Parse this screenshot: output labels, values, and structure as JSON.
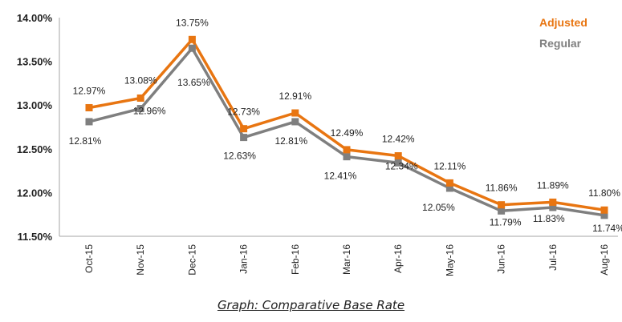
{
  "caption": "Graph: Comparative Base Rate",
  "chart_data": {
    "type": "line",
    "categories": [
      "Oct-15",
      "Nov-15",
      "Dec-15",
      "Jan-16",
      "Feb-16",
      "Mar-16",
      "Apr-16",
      "May-16",
      "Jun-16",
      "Jul-16",
      "Aug-16"
    ],
    "series": [
      {
        "name": "Adjusted",
        "color": "#E87511",
        "values": [
          12.97,
          13.08,
          13.75,
          12.73,
          12.91,
          12.49,
          12.42,
          12.11,
          11.86,
          11.89,
          11.8
        ],
        "labels": [
          "12.97%",
          "13.08%",
          "13.75%",
          "12.73%",
          "12.91%",
          "12.49%",
          "12.42%",
          "12.11%",
          "11.86%",
          "11.89%",
          "11.80%"
        ]
      },
      {
        "name": "Regular",
        "color": "#7F7F7F",
        "values": [
          12.81,
          12.96,
          13.65,
          12.63,
          12.81,
          12.41,
          12.34,
          12.05,
          11.79,
          11.83,
          11.74
        ],
        "labels": [
          "12.81%",
          "12.96%",
          "13.65%",
          "12.63%",
          "12.81%",
          "12.41%",
          "12.34%",
          "12.05%",
          "11.79%",
          "11.83%",
          "11.74%"
        ]
      }
    ],
    "y_ticks": [
      "11.50%",
      "12.00%",
      "12.50%",
      "13.00%",
      "13.50%",
      "14.00%"
    ],
    "ylim": [
      11.5,
      14.0
    ],
    "grid": false,
    "legend_position": "top-right"
  }
}
